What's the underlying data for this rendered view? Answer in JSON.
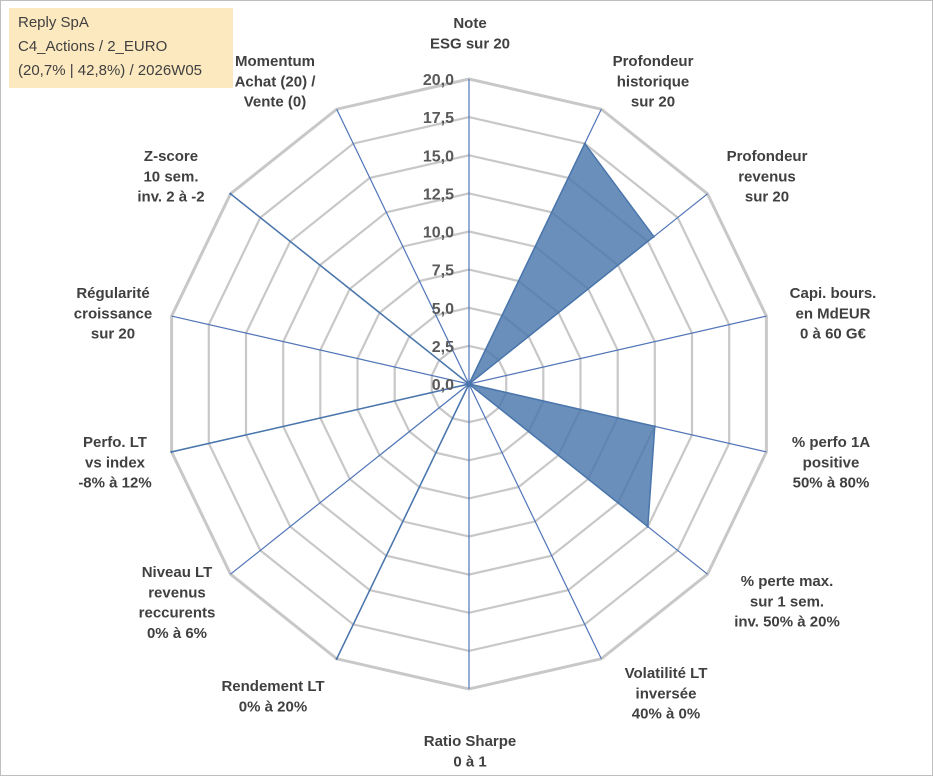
{
  "info_box": {
    "company": "Reply SpA",
    "classification": "C4_Actions / 2_EURO",
    "stats": "(20,7% | 42,8%) / 2026W05"
  },
  "chart_data": {
    "type": "radar",
    "title": "",
    "rmin": 0,
    "rmax": 20,
    "ticks": [
      "0,0",
      "2,5",
      "5,0",
      "7,5",
      "10,0",
      "12,5",
      "15,0",
      "17,5",
      "20,0"
    ],
    "tick_values": [
      0,
      2.5,
      5,
      7.5,
      10,
      12.5,
      15,
      17.5,
      20
    ],
    "categories": [
      [
        "Note",
        "ESG sur 20"
      ],
      [
        "Profondeur",
        "historique",
        "sur 20"
      ],
      [
        "Profondeur",
        "revenus",
        "sur 20"
      ],
      [
        "Capi. bours.",
        "en MdEUR",
        "0 à 60 G€"
      ],
      [
        "% perfo 1A",
        "positive",
        "50% à 80%"
      ],
      [
        "% perte max.",
        "sur 1 sem.",
        "inv. 50% à 20%"
      ],
      [
        "Volatilité LT",
        "inversée",
        "40% à 0%"
      ],
      [
        "Ratio Sharpe",
        "0 à 1"
      ],
      [
        "Rendement LT",
        "0% à 20%"
      ],
      [
        "Niveau LT",
        "revenus",
        "reccurents",
        "0% à 6%"
      ],
      [
        "Perfo. LT",
        "vs index",
        "-8% à 12%"
      ],
      [
        "Régularité",
        "croissance",
        "sur 20"
      ],
      [
        "Z-score",
        "10 sem.",
        "inv. 2 à -2"
      ],
      [
        "Momentum",
        "Achat (20) /",
        "Vente (0)"
      ]
    ],
    "series": [
      {
        "name": "Reply SpA",
        "color": "#4a76ac",
        "values": [
          0,
          17.5,
          15.5,
          0,
          12.5,
          15,
          0,
          0,
          20,
          0,
          20,
          0,
          20,
          0
        ]
      }
    ]
  }
}
